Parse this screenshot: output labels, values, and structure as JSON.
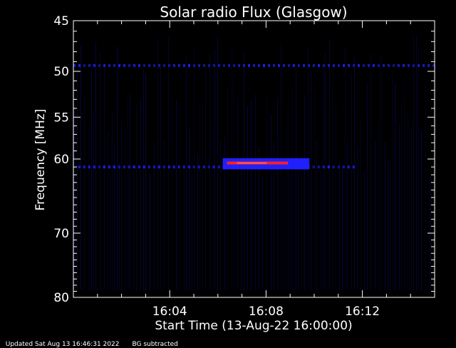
{
  "chart_data": {
    "type": "heatmap",
    "title": "Solar radio Flux (Glasgow)",
    "xlabel": "Start Time (13-Aug-22 16:00:00)",
    "ylabel": "Frequency [MHz]",
    "x_range_minutes": [
      0,
      15
    ],
    "y_range_mhz": [
      45,
      80
    ],
    "y_inverted": true,
    "x_ticks": [
      {
        "label": "16:04",
        "minute": 4
      },
      {
        "label": "16:08",
        "minute": 8
      },
      {
        "label": "16:12",
        "minute": 12
      }
    ],
    "y_ticks": [
      {
        "label": "45",
        "mhz": 45
      },
      {
        "label": "50",
        "mhz": 50
      },
      {
        "label": "55",
        "mhz": 55
      },
      {
        "label": "60",
        "mhz": 60
      },
      {
        "label": "70",
        "mhz": 70
      },
      {
        "label": "80",
        "mhz": 80
      }
    ],
    "features": [
      {
        "name": "burst",
        "t_start_min": 6.2,
        "t_end_min": 9.8,
        "f_low_mhz": 59.9,
        "f_high_mhz": 61.3,
        "peak_mhz": 60.5
      },
      {
        "name": "interference-line",
        "t_start_min": 0,
        "t_end_min": 15,
        "f_mhz": 49.4
      },
      {
        "name": "interference-line",
        "t_start_min": 0.2,
        "t_end_min": 11.7,
        "f_mhz": 61.0
      }
    ],
    "grid": false,
    "legend": "none"
  },
  "footer": {
    "updated": "Updated Sat Aug 13 16:46:31 2022",
    "note": "BG subtracted"
  },
  "colors": {
    "background": "#000000",
    "low": "#0a0a60",
    "mid": "#2020ff",
    "high": "#ff2020"
  }
}
